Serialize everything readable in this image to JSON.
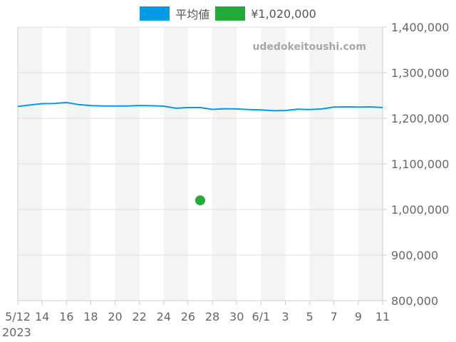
{
  "legend": {
    "series_label": "平均値",
    "series_color": "#039be5",
    "point_label": "¥1,020,000",
    "point_color": "#22aa3a"
  },
  "watermark": "udedokeitoushi.com",
  "chart_data": {
    "type": "line",
    "title": "",
    "xlabel": "",
    "ylabel": "",
    "ylim": [
      800000,
      1400000
    ],
    "y_ticks": [
      "800,000",
      "900,000",
      "1,000,000",
      "1,100,000",
      "1,200,000",
      "1,300,000",
      "1,400,000"
    ],
    "x_ticks": [
      "5/12",
      "14",
      "16",
      "18",
      "20",
      "22",
      "24",
      "26",
      "28",
      "30",
      "6/1",
      "3",
      "5",
      "7",
      "9",
      "11"
    ],
    "x_year_label": "2023",
    "grid": true,
    "legend_position": "top",
    "x": [
      "5/12",
      "5/13",
      "5/14",
      "5/15",
      "5/16",
      "5/17",
      "5/18",
      "5/19",
      "5/20",
      "5/21",
      "5/22",
      "5/23",
      "5/24",
      "5/25",
      "5/26",
      "5/27",
      "5/28",
      "5/29",
      "5/30",
      "5/31",
      "6/1",
      "6/2",
      "6/3",
      "6/4",
      "6/5",
      "6/6",
      "6/7",
      "6/8",
      "6/9",
      "6/10",
      "6/11"
    ],
    "series": [
      {
        "name": "平均値",
        "values": [
          1226000,
          1229000,
          1232000,
          1232500,
          1234500,
          1230000,
          1228000,
          1227000,
          1227000,
          1227000,
          1228000,
          1227500,
          1226500,
          1222000,
          1223500,
          1223500,
          1219500,
          1221000,
          1220500,
          1219000,
          1218500,
          1216500,
          1217000,
          1220000,
          1219000,
          1220500,
          1224500,
          1225000,
          1224500,
          1225000,
          1223500
        ],
        "color": "#039be5"
      },
      {
        "name": "¥1,020,000",
        "type": "scatter",
        "points": [
          {
            "x": "5/27",
            "y": 1020000
          }
        ],
        "color": "#22aa3a"
      }
    ]
  }
}
